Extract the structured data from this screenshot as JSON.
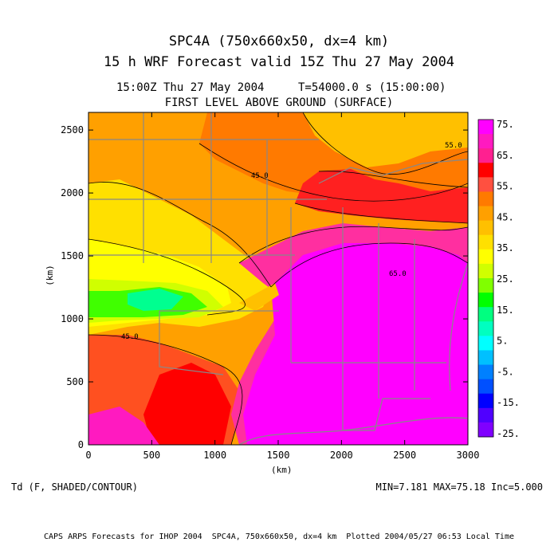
{
  "title": {
    "line1": "SPC4A (750x660x50, dx=4 km)",
    "line2": "15 h WRF Forecast valid 15Z Thu 27 May 2004"
  },
  "subtitle": {
    "time": "15:00Z Thu 27 May 2004",
    "model_time": "T=54000.0 s (15:00:00)",
    "level": "FIRST LEVEL ABOVE GROUND (SURFACE)"
  },
  "field_label": "Td (F, SHADED/CONTOUR)",
  "minmax": "MIN=7.181 MAX=75.18 Inc=5.000",
  "footer": "CAPS ARPS Forecasts for IHOP 2004  SPC4A, 750x660x50, dx=4 km  Plotted 2004/05/27 06:53 Local Time",
  "chart_data": {
    "type": "heatmap",
    "x_axis": {
      "label": "(km)",
      "range": [
        0,
        3000
      ],
      "ticks": [
        "0",
        "500",
        "1000",
        "1500",
        "2000",
        "2500",
        "3000"
      ]
    },
    "y_axis": {
      "label": "(km)",
      "range": [
        0,
        2640
      ],
      "ticks": [
        "0",
        "500",
        "1000",
        "1500",
        "2000",
        "2500"
      ]
    },
    "colorbar": {
      "labels": [
        "75.",
        "65.",
        "55.",
        "45.",
        "35.",
        "25.",
        "15.",
        "5.",
        "-5.",
        "-15.",
        "-25."
      ],
      "colors": [
        "#ff00ff",
        "#ff1ac0",
        "#ff2090",
        "#ff0000",
        "#ff5040",
        "#ff7a00",
        "#ffa000",
        "#ffc000",
        "#ffe000",
        "#ffff00",
        "#d0ff00",
        "#80ff00",
        "#00ff00",
        "#00ff80",
        "#00ffc0",
        "#00ffff",
        "#00c0ff",
        "#0080ff",
        "#0050ff",
        "#0000ff",
        "#5000ff",
        "#8000ff"
      ]
    },
    "contour_labels": [
      "45.0",
      "65.0",
      "45.0",
      "55.0"
    ]
  }
}
